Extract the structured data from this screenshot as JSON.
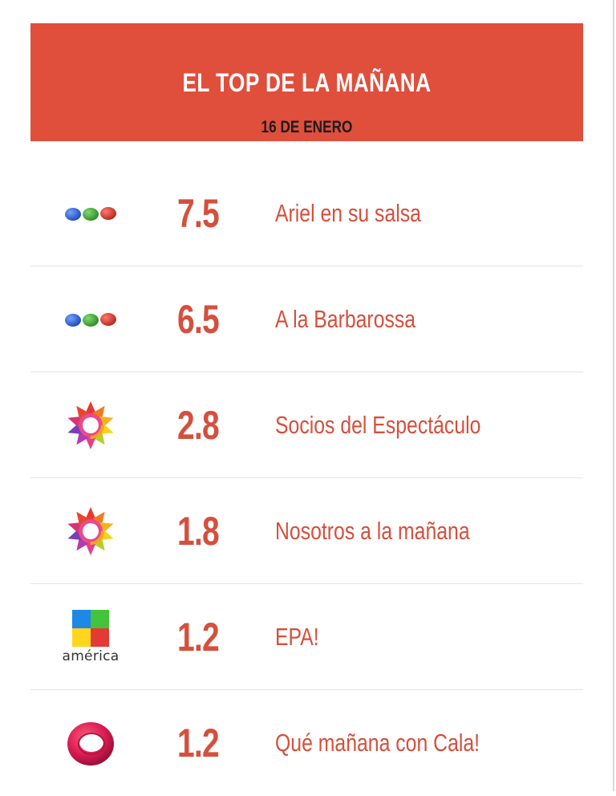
{
  "header": {
    "title": "EL TOP DE LA MAÑANA",
    "date": "16 DE ENERO",
    "color": "#df4f3c"
  },
  "accent_color": "#d4503d",
  "rows": [
    {
      "channel_logo": "telefe-three-dots-icon",
      "rating": "7.5",
      "show": "Ariel en su salsa"
    },
    {
      "channel_logo": "telefe-three-dots-icon",
      "rating": "6.5",
      "show": "A la Barbarossa"
    },
    {
      "channel_logo": "eltrece-star-icon",
      "rating": "2.8",
      "show": "Socios del Espectáculo"
    },
    {
      "channel_logo": "eltrece-star-icon",
      "rating": "1.8",
      "show": "Nosotros a la mañana"
    },
    {
      "channel_logo": "america-squares-icon",
      "logo_text": "américa",
      "rating": "1.2",
      "show": "EPA!"
    },
    {
      "channel_logo": "canal9-ring-icon",
      "rating": "1.2",
      "show": "Qué mañana con Cala!"
    }
  ]
}
